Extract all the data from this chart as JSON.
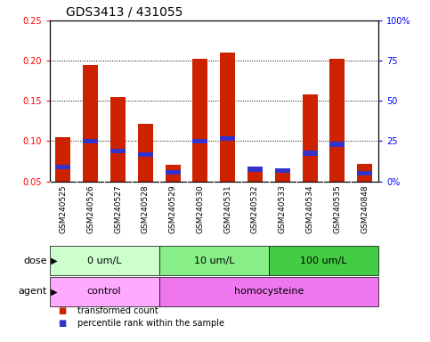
{
  "title": "GDS3413 / 431055",
  "samples": [
    "GSM240525",
    "GSM240526",
    "GSM240527",
    "GSM240528",
    "GSM240529",
    "GSM240530",
    "GSM240531",
    "GSM240532",
    "GSM240533",
    "GSM240534",
    "GSM240535",
    "GSM240848"
  ],
  "transformed_count": [
    0.105,
    0.195,
    0.155,
    0.122,
    0.07,
    0.202,
    0.21,
    0.062,
    0.062,
    0.158,
    0.202,
    0.072
  ],
  "percentile_rank": [
    0.065,
    0.097,
    0.085,
    0.08,
    0.058,
    0.097,
    0.1,
    0.062,
    0.06,
    0.082,
    0.093,
    0.057
  ],
  "percentile_height": [
    0.006,
    0.006,
    0.006,
    0.006,
    0.006,
    0.006,
    0.006,
    0.006,
    0.006,
    0.006,
    0.006,
    0.006
  ],
  "bar_color": "#cc2200",
  "percentile_color": "#3333cc",
  "ylim_left": [
    0.05,
    0.25
  ],
  "ylim_right": [
    0,
    100
  ],
  "yticks_left": [
    0.05,
    0.1,
    0.15,
    0.2,
    0.25
  ],
  "yticks_right": [
    0,
    25,
    50,
    75,
    100
  ],
  "ytick_labels_left": [
    "0.05",
    "0.10",
    "0.15",
    "0.20",
    "0.25"
  ],
  "ytick_labels_right": [
    "0%",
    "25",
    "50",
    "75",
    "100%"
  ],
  "dose_groups": [
    {
      "label": "0 um/L",
      "start": 0,
      "end": 4,
      "color": "#ccffcc"
    },
    {
      "label": "10 um/L",
      "start": 4,
      "end": 8,
      "color": "#88ee88"
    },
    {
      "label": "100 um/L",
      "start": 8,
      "end": 12,
      "color": "#44cc44"
    }
  ],
  "agent_groups": [
    {
      "label": "control",
      "start": 0,
      "end": 4,
      "color": "#ffaaff"
    },
    {
      "label": "homocysteine",
      "start": 4,
      "end": 12,
      "color": "#ee77ee"
    }
  ],
  "dose_label": "dose",
  "agent_label": "agent",
  "legend_items": [
    {
      "color": "#cc2200",
      "label": "transformed count"
    },
    {
      "color": "#3333cc",
      "label": "percentile rank within the sample"
    }
  ],
  "bar_width": 0.55,
  "bg_color": "#ffffff",
  "xticklabel_bg": "#cccccc",
  "title_fontsize": 10,
  "tick_fontsize": 7,
  "sample_fontsize": 6.5,
  "label_fontsize": 8,
  "legend_fontsize": 7
}
